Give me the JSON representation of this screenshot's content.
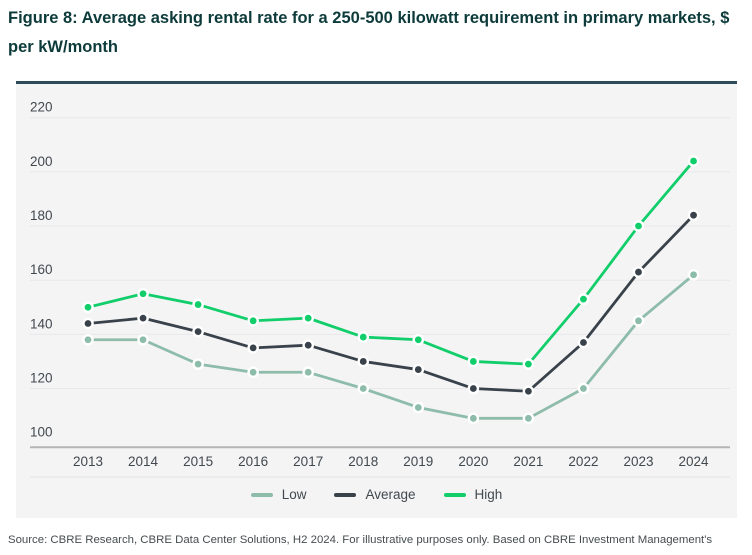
{
  "figure": {
    "title_line1": "Figure 8: Average asking rental rate for a 250-500 kilowatt requirement in primary markets, $",
    "title_line2": "per kW/month",
    "source": "Source: CBRE Research, CBRE Data Center Solutions, H2 2024. For illustrative purposes only. Based on CBRE Investment Management's"
  },
  "chart_data": {
    "type": "line",
    "title": "Average asking rental rate for a 250-500 kilowatt requirement in primary markets, $ per kW/month",
    "x": [
      2013,
      2014,
      2015,
      2016,
      2017,
      2018,
      2019,
      2020,
      2021,
      2022,
      2023,
      2024
    ],
    "series": [
      {
        "name": "Low",
        "color": "#8ebcaa",
        "values": [
          138,
          138,
          129,
          126,
          126,
          120,
          113,
          109,
          109,
          120,
          145,
          162
        ]
      },
      {
        "name": "Average",
        "color": "#39424a",
        "values": [
          144,
          146,
          141,
          135,
          136,
          130,
          127,
          120,
          119,
          137,
          163,
          184
        ]
      },
      {
        "name": "High",
        "color": "#11ce6b",
        "values": [
          150,
          155,
          151,
          145,
          146,
          139,
          138,
          130,
          129,
          153,
          180,
          204
        ]
      }
    ],
    "ylim": [
      100,
      220
    ],
    "yticks": [
      220,
      200,
      180,
      160,
      140,
      120,
      100
    ],
    "xlabel": "",
    "ylabel": "",
    "grid": true,
    "legend_position": "bottom"
  },
  "style": {
    "grid_color": "#e8e8ea",
    "axis_color": "#b3b5b7",
    "tick_label_color": "#41484e",
    "panel_bg": "#f4f4f5",
    "panel_top_border": "#2c4d58",
    "title_color": "#0d3a3a"
  }
}
